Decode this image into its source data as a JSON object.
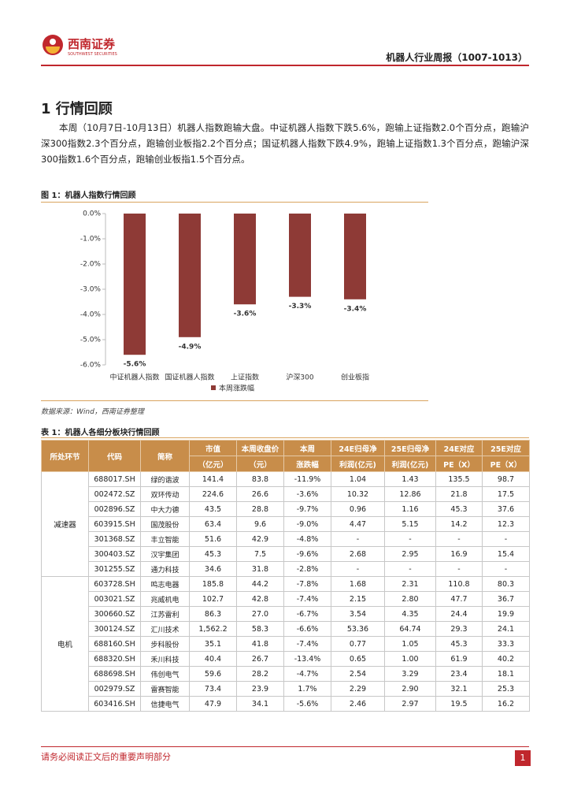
{
  "header": {
    "brand": "西南证券",
    "brand_en": "SOUTHWEST SECURITIES",
    "report_title": "机器人行业周报（1007-1013）"
  },
  "section_title": "1 行情回顾",
  "paragraph": "本周（10月7日-10月13日）机器人指数跑输大盘。中证机器人指数下跌5.6%，跑输上证指数2.0个百分点，跑输沪深300指数2.3个百分点，跑输创业板指2.2个百分点；国证机器人指数下跌4.9%，跑输上证指数1.3个百分点，跑输沪深300指数1.6个百分点，跑输创业板指1.5个百分点。",
  "figure_caption": "图 1：机器人指数行情回顾",
  "chart_data": {
    "type": "bar",
    "categories": [
      "中证机器人指数",
      "国证机器人指数",
      "上证指数",
      "沪深300",
      "创业板指"
    ],
    "series": [
      {
        "name": "本周涨跌幅",
        "color": "#8e3a36",
        "values": [
          -5.6,
          -4.9,
          -3.6,
          -3.3,
          -3.4
        ],
        "value_labels": [
          "-5.6%",
          "-4.9%",
          "-3.6%",
          "-3.3%",
          "-3.4%"
        ]
      }
    ],
    "ylim": [
      -6,
      0
    ],
    "yticks": [
      {
        "value": 0,
        "label": "0.0%"
      },
      {
        "value": -1,
        "label": "-1.0%"
      },
      {
        "value": -2,
        "label": "-2.0%"
      },
      {
        "value": -3,
        "label": "-3.0%"
      },
      {
        "value": -4,
        "label": "-4.0%"
      },
      {
        "value": -5,
        "label": "-5.0%"
      },
      {
        "value": -6,
        "label": "-6.0%"
      }
    ],
    "legend": "bottom"
  },
  "figure_source": "数据来源：Wind，西南证券整理",
  "table_caption": "表 1：机器人各细分板块行情回顾",
  "table": {
    "header": [
      [
        "所处环节"
      ],
      [
        "代码"
      ],
      [
        "简称"
      ],
      [
        "市值",
        "（亿元）"
      ],
      [
        "本周收盘价",
        "（元）"
      ],
      [
        "本周",
        "涨跌幅"
      ],
      [
        "24E归母净",
        "利润(亿元)"
      ],
      [
        "25E归母净",
        "利润(亿元)"
      ],
      [
        "24E对应",
        "PE（X）"
      ],
      [
        "25E对应",
        "PE（X）"
      ]
    ],
    "groups": [
      {
        "segment": "减速器",
        "rows": [
          [
            "688017.SH",
            "绿的谐波",
            "141.4",
            "83.8",
            "-11.9%",
            "1.04",
            "1.43",
            "135.5",
            "98.7"
          ],
          [
            "002472.SZ",
            "双环传动",
            "224.6",
            "26.6",
            "-3.6%",
            "10.32",
            "12.86",
            "21.8",
            "17.5"
          ],
          [
            "002896.SZ",
            "中大力德",
            "43.5",
            "28.8",
            "-9.7%",
            "0.96",
            "1.16",
            "45.3",
            "37.6"
          ],
          [
            "603915.SH",
            "国茂股份",
            "63.4",
            "9.6",
            "-9.0%",
            "4.47",
            "5.15",
            "14.2",
            "12.3"
          ],
          [
            "301368.SZ",
            "丰立智能",
            "51.6",
            "42.9",
            "-4.8%",
            "-",
            "-",
            "-",
            "-"
          ],
          [
            "300403.SZ",
            "汉宇集团",
            "45.3",
            "7.5",
            "-9.6%",
            "2.68",
            "2.95",
            "16.9",
            "15.4"
          ],
          [
            "301255.SZ",
            "通力科技",
            "34.6",
            "31.8",
            "-2.8%",
            "-",
            "-",
            "-",
            "-"
          ]
        ]
      },
      {
        "segment": "电机",
        "rows": [
          [
            "603728.SH",
            "鸣志电器",
            "185.8",
            "44.2",
            "-7.8%",
            "1.68",
            "2.31",
            "110.8",
            "80.3"
          ],
          [
            "003021.SZ",
            "兆威机电",
            "102.7",
            "42.8",
            "-7.4%",
            "2.15",
            "2.80",
            "47.7",
            "36.7"
          ],
          [
            "300660.SZ",
            "江苏雷利",
            "86.3",
            "27.0",
            "-6.7%",
            "3.54",
            "4.35",
            "24.4",
            "19.9"
          ],
          [
            "300124.SZ",
            "汇川技术",
            "1,562.2",
            "58.3",
            "-6.6%",
            "53.36",
            "64.74",
            "29.3",
            "24.1"
          ],
          [
            "688160.SH",
            "步科股份",
            "35.1",
            "41.8",
            "-7.4%",
            "0.77",
            "1.05",
            "45.3",
            "33.3"
          ],
          [
            "688320.SH",
            "禾川科技",
            "40.4",
            "26.7",
            "-13.4%",
            "0.65",
            "1.00",
            "61.9",
            "40.2"
          ],
          [
            "688698.SH",
            "伟创电气",
            "59.6",
            "28.2",
            "-4.7%",
            "2.54",
            "3.29",
            "23.4",
            "18.1"
          ],
          [
            "002979.SZ",
            "雷赛智能",
            "73.4",
            "23.9",
            "1.7%",
            "2.29",
            "2.90",
            "32.1",
            "25.3"
          ],
          [
            "603416.SH",
            "信捷电气",
            "47.9",
            "34.1",
            "-5.6%",
            "2.46",
            "2.97",
            "19.5",
            "16.2"
          ]
        ]
      }
    ]
  },
  "footer": {
    "notice": "请务必阅读正文后的重要声明部分",
    "page": "1"
  }
}
